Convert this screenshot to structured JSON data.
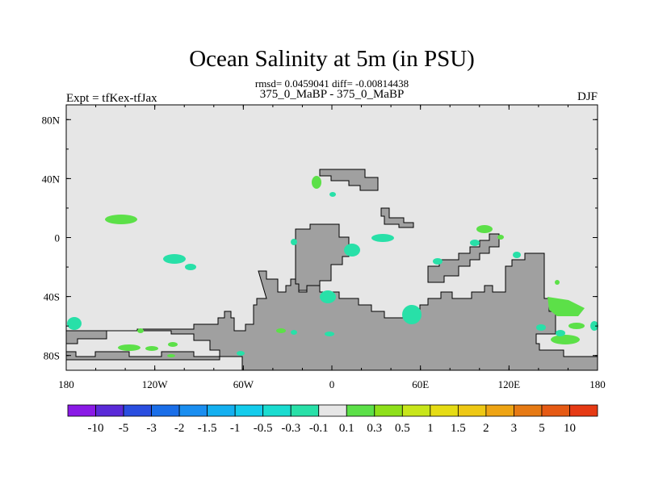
{
  "chart_data": {
    "type": "heatmap",
    "title": "Ocean Salinity at 5m (in PSU)",
    "stats_text": "rmsd= 0.0459041 diff= -0.00814438",
    "left_label": "Expt = tfKex-tfJax",
    "center_label": "375_0_MaBP - 375_0_MaBP",
    "right_label": "DJF",
    "x_ticks": [
      "180",
      "120W",
      "60W",
      "0",
      "60E",
      "120E",
      "180"
    ],
    "x_tick_values": [
      -180,
      -120,
      -60,
      0,
      60,
      120,
      180
    ],
    "y_ticks": [
      "80N",
      "40N",
      "0",
      "40S",
      "80S"
    ],
    "y_tick_values": [
      80,
      40,
      0,
      -40,
      -80
    ],
    "xlim": [
      -180,
      180
    ],
    "ylim": [
      -90,
      90
    ],
    "colorbar": {
      "labels": [
        "-10",
        "-5",
        "-3",
        "-2",
        "-1.5",
        "-1",
        "-0.5",
        "-0.3",
        "-0.1",
        "0.1",
        "0.3",
        "0.5",
        "1",
        "1.5",
        "2",
        "3",
        "5",
        "10"
      ],
      "colors": [
        "#8a1ae6",
        "#5a2ad8",
        "#2a4ee0",
        "#1a6ee8",
        "#1a8ef0",
        "#14b0f0",
        "#14ccec",
        "#1adcd0",
        "#28e0a8",
        "#e6e6e6",
        "#5ce048",
        "#8ee01a",
        "#c8e61a",
        "#e6dc14",
        "#eec814",
        "#eea414",
        "#e67a14",
        "#e65a14",
        "#e63a14"
      ]
    }
  }
}
